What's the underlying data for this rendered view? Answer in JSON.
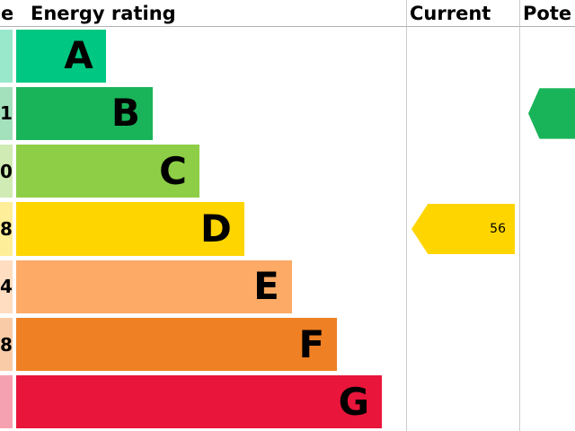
{
  "header": {
    "score_label": "e",
    "rating_label": "Energy rating",
    "current_label": "Current",
    "potential_label": "Pote"
  },
  "chart_data": {
    "type": "bar",
    "title": "Energy rating",
    "orientation": "horizontal",
    "bands": [
      {
        "letter": "A",
        "color": "#00c781",
        "tint": "#99e8cc",
        "width_pct": 23,
        "score_digit": ""
      },
      {
        "letter": "B",
        "color": "#19b459",
        "tint": "#a3e1bc",
        "width_pct": 35,
        "score_digit": "1"
      },
      {
        "letter": "C",
        "color": "#8dce46",
        "tint": "#d1ebb5",
        "width_pct": 47,
        "score_digit": "0"
      },
      {
        "letter": "D",
        "color": "#ffd500",
        "tint": "#ffee99",
        "width_pct": 58.5,
        "score_digit": "8"
      },
      {
        "letter": "E",
        "color": "#fcaa65",
        "tint": "#feddc1",
        "width_pct": 70.7,
        "score_digit": "4"
      },
      {
        "letter": "F",
        "color": "#ef8023",
        "tint": "#f9cca7",
        "width_pct": 82.3,
        "score_digit": "8"
      },
      {
        "letter": "G",
        "color": "#e9153b",
        "tint": "#f6a1b1",
        "width_pct": 93.8,
        "score_digit": ""
      }
    ],
    "current": {
      "value": "56",
      "band": "D",
      "band_index": 3,
      "color": "#ffd500"
    },
    "potential": {
      "value": "",
      "band": "B",
      "band_index": 1,
      "color": "#19b459"
    }
  },
  "colors": {
    "header_rule": "#b1b1b1",
    "column_separator": "#cccccc",
    "text": "#000000"
  }
}
